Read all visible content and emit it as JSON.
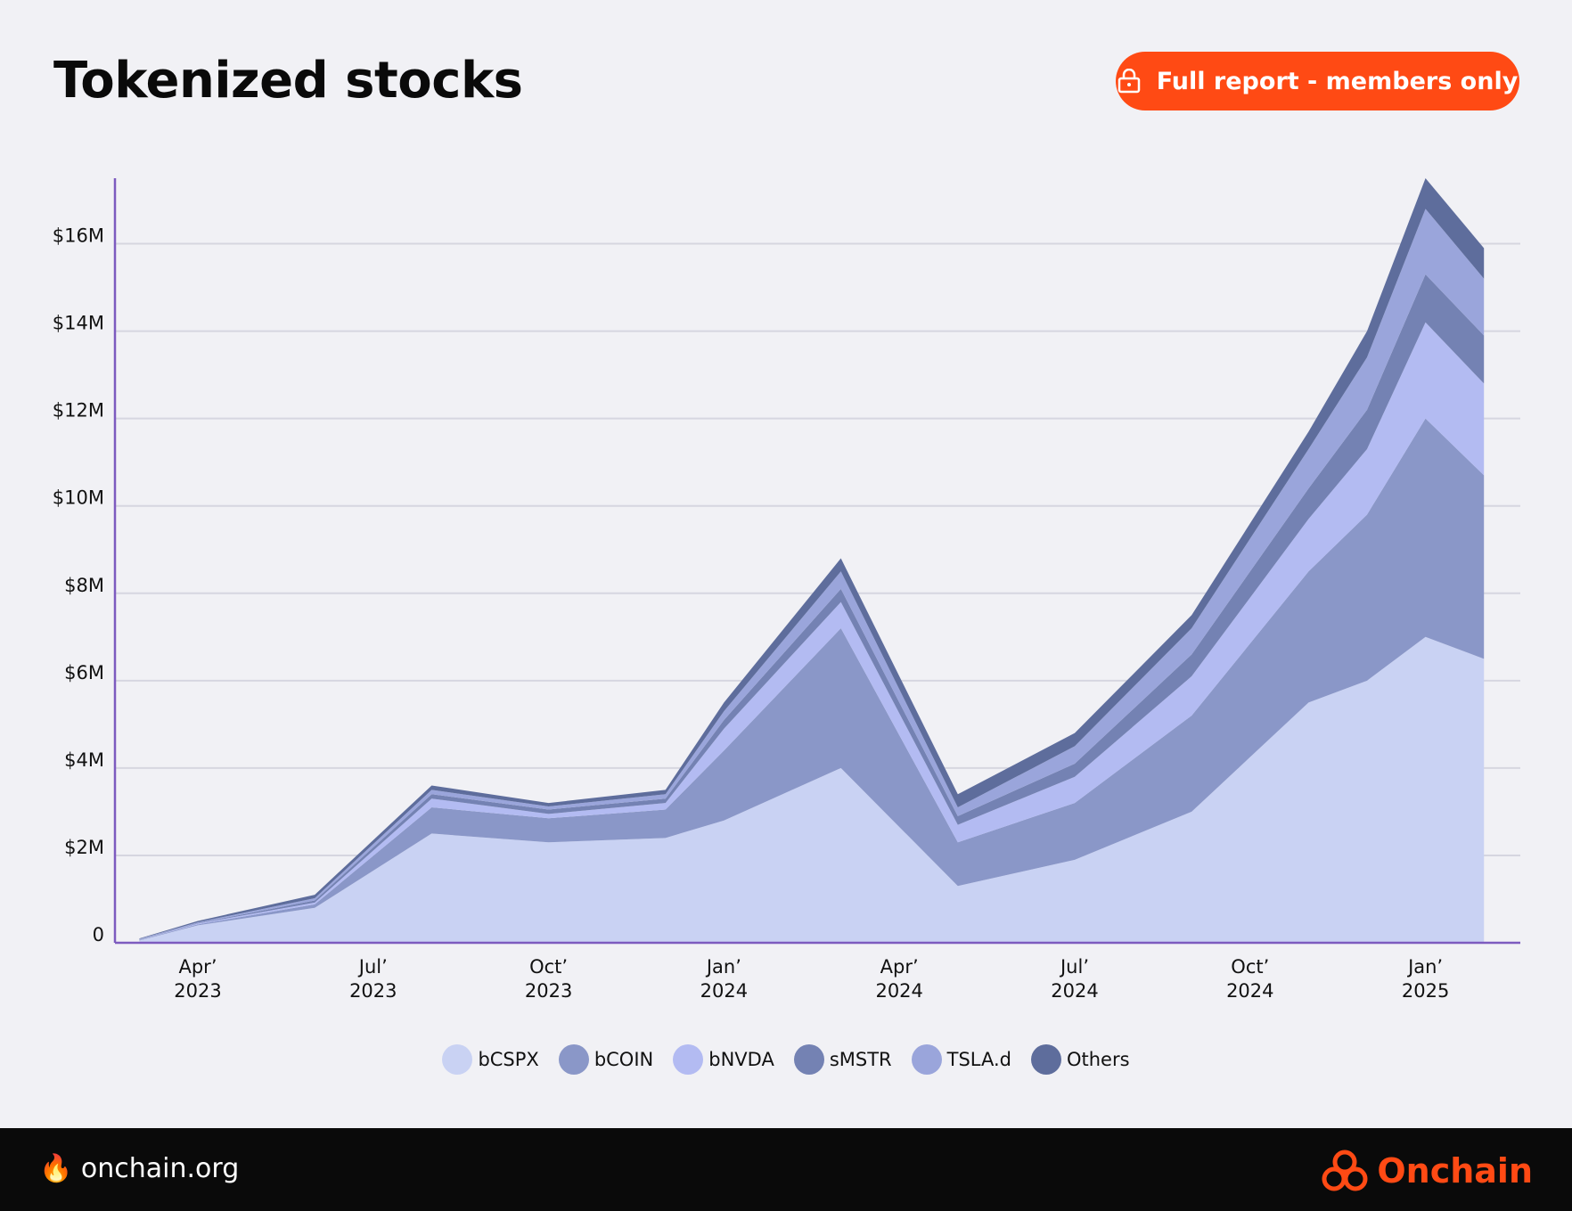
{
  "chart_data": {
    "type": "stacked-area",
    "title": "Tokenized stocks",
    "x": [
      "2023-03",
      "2023-04",
      "2023-06",
      "2023-08",
      "2023-10",
      "2023-12",
      "2024-01",
      "2024-03",
      "2024-05",
      "2024-07",
      "2024-09",
      "2024-11",
      "2024-12",
      "2025-01",
      "2025-02"
    ],
    "series": [
      {
        "name": "bCSPX",
        "color": "#c9d2f3",
        "values": [
          50000,
          400000,
          800000,
          2500000,
          2300000,
          2400000,
          2800000,
          4000000,
          1300000,
          1900000,
          3000000,
          5500000,
          6000000,
          7000000,
          6500000
        ]
      },
      {
        "name": "bCOIN",
        "color": "#8a97c8",
        "values": [
          10000,
          20000,
          80000,
          600000,
          550000,
          650000,
          1600000,
          3200000,
          1000000,
          1300000,
          2200000,
          3000000,
          3800000,
          5000000,
          4200000
        ]
      },
      {
        "name": "bNVDA",
        "color": "#b3bbf2",
        "values": [
          10000,
          20000,
          40000,
          200000,
          100000,
          150000,
          500000,
          600000,
          400000,
          600000,
          900000,
          1200000,
          1500000,
          2200000,
          2100000
        ]
      },
      {
        "name": "sMSTR",
        "color": "#7482b3",
        "values": [
          10000,
          10000,
          50000,
          100000,
          100000,
          100000,
          200000,
          300000,
          200000,
          300000,
          500000,
          700000,
          900000,
          1100000,
          1100000
        ]
      },
      {
        "name": "TSLA.d",
        "color": "#9aa5db",
        "values": [
          10000,
          20000,
          50000,
          100000,
          70000,
          100000,
          200000,
          400000,
          200000,
          400000,
          600000,
          900000,
          1200000,
          1500000,
          1300000
        ]
      },
      {
        "name": "Others",
        "color": "#5e6d9c",
        "values": [
          10000,
          30000,
          80000,
          100000,
          80000,
          100000,
          200000,
          300000,
          300000,
          300000,
          300000,
          400000,
          600000,
          700000,
          700000
        ]
      }
    ],
    "ylim": [
      0,
      17500000
    ],
    "yticks": [
      0,
      {
        "value": 2000000,
        "label": "$2M"
      },
      {
        "value": 4000000,
        "label": "$4M"
      },
      {
        "value": 6000000,
        "label": "$6M"
      },
      {
        "value": 8000000,
        "label": "$8M"
      },
      {
        "value": 10000000,
        "label": "$10M"
      },
      {
        "value": 12000000,
        "label": "$12M"
      },
      {
        "value": 14000000,
        "label": "$14M"
      },
      {
        "value": 16000000,
        "label": "$16M"
      }
    ],
    "xticks": [
      {
        "value": "2023-04",
        "label": "Apr’\n2023"
      },
      {
        "value": "2023-07",
        "label": "Jul’\n2023"
      },
      {
        "value": "2023-10",
        "label": "Oct’\n2023"
      },
      {
        "value": "2024-01",
        "label": "Jan’\n2024"
      },
      {
        "value": "2024-04",
        "label": "Apr’\n2024"
      },
      {
        "value": "2024-07",
        "label": "Jul’\n2024"
      },
      {
        "value": "2024-10",
        "label": "Oct’\n2024"
      },
      {
        "value": "2025-01",
        "label": "Jan’\n2025"
      }
    ],
    "grid": true,
    "legend": "bottom"
  },
  "button_text": "Full report - members only",
  "footer_site": "onchain.org",
  "brand": "Onchain"
}
